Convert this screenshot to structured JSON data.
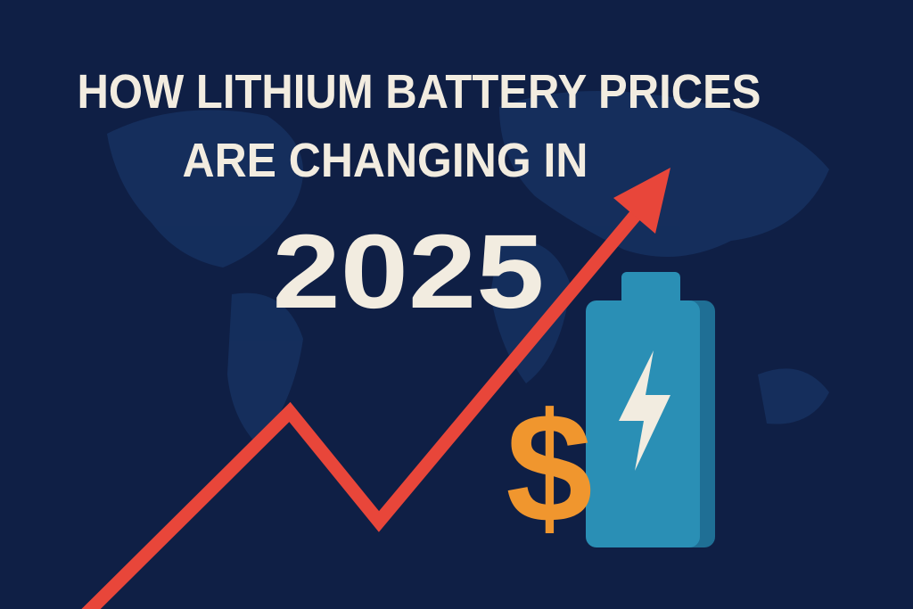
{
  "header": {
    "title_lines": [
      "HOW LITHIUM BATTERY PRICES",
      "ARE CHANGING IN"
    ],
    "year": "2025"
  },
  "icon": {
    "symbol": "$"
  }
}
